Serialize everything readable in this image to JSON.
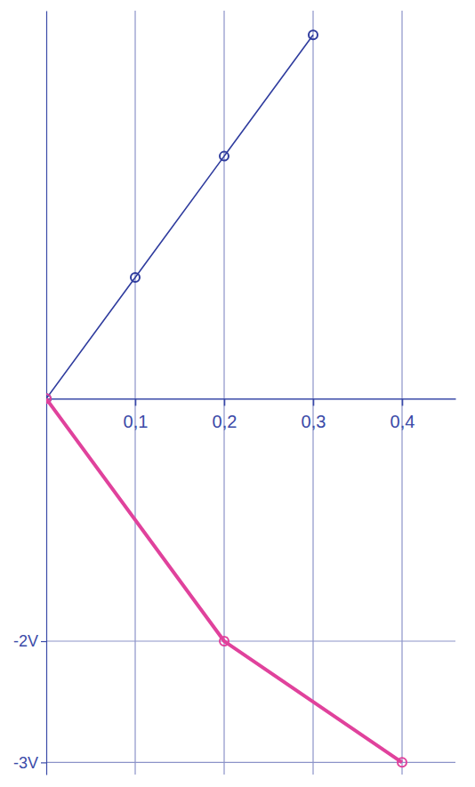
{
  "chart_data": {
    "type": "line",
    "xlim": [
      0,
      0.46
    ],
    "xticks": [
      {
        "value": 0.1,
        "label": "0,1"
      },
      {
        "value": 0.2,
        "label": "0,2"
      },
      {
        "value": 0.3,
        "label": "0,3"
      },
      {
        "value": 0.4,
        "label": "0,4"
      }
    ],
    "ylim": [
      -3.1,
      3.2
    ],
    "yticks": [
      {
        "value": -3,
        "label": "-3V"
      },
      {
        "value": -2,
        "label": "-2V"
      }
    ],
    "grid": true,
    "series": [
      {
        "color": "#2f3c9e",
        "marker": "circle",
        "x": [
          0,
          0.1,
          0.2,
          0.3
        ],
        "values": [
          0,
          1,
          2,
          3
        ]
      },
      {
        "color": "#e0429c",
        "marker": "circle",
        "x": [
          0,
          0.2,
          0.4
        ],
        "values": [
          0,
          -2,
          -3
        ]
      }
    ]
  }
}
